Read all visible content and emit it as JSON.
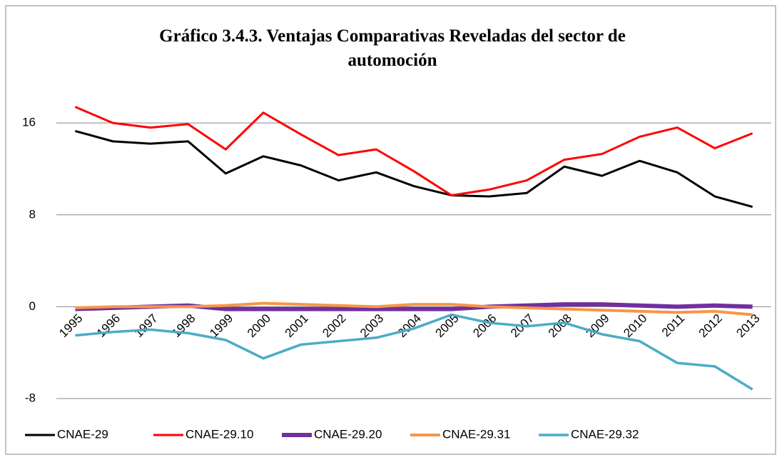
{
  "chart_data": {
    "type": "line",
    "title": "Gráfico 3.4.3. Ventajas Comparativas Reveladas del sector de automoción",
    "categories": [
      "1995",
      "1996",
      "1997",
      "1998",
      "1999",
      "2000",
      "2001",
      "2002",
      "2003",
      "2004",
      "2005",
      "2006",
      "2007",
      "2008",
      "2009",
      "2010",
      "2011",
      "2012",
      "2013"
    ],
    "series": [
      {
        "name": "CNAE-29",
        "color": "#000000",
        "values": [
          15.3,
          14.4,
          14.2,
          14.4,
          11.6,
          13.1,
          12.3,
          11.0,
          11.7,
          10.5,
          9.7,
          9.6,
          9.9,
          12.2,
          11.4,
          12.7,
          11.7,
          9.6,
          8.7
        ]
      },
      {
        "name": "CNAE-29.10",
        "color": "#ff0000",
        "values": [
          17.4,
          16.0,
          15.6,
          15.9,
          13.7,
          16.9,
          15.0,
          13.2,
          13.7,
          11.8,
          9.7,
          10.2,
          11.0,
          12.8,
          13.3,
          14.8,
          15.6,
          13.8,
          15.1
        ]
      },
      {
        "name": "CNAE-29.20",
        "color": "#7030a0",
        "values": [
          -0.2,
          -0.1,
          0,
          0.1,
          -0.2,
          -0.2,
          -0.2,
          -0.2,
          -0.2,
          -0.2,
          -0.2,
          0,
          0.1,
          0.2,
          0.2,
          0.1,
          0,
          0.1,
          0
        ]
      },
      {
        "name": "CNAE-29.31",
        "color": "#f79646",
        "values": [
          -0.1,
          0,
          0,
          0,
          0.1,
          0.3,
          0.2,
          0.1,
          0,
          0.2,
          0.2,
          0,
          -0.1,
          -0.2,
          -0.3,
          -0.4,
          -0.5,
          -0.4,
          -0.7
        ]
      },
      {
        "name": "CNAE-29.32",
        "color": "#4bacc6",
        "values": [
          -2.5,
          -2.2,
          -2.0,
          -2.3,
          -2.9,
          -4.5,
          -3.3,
          -3.0,
          -2.7,
          -1.9,
          -0.7,
          -1.4,
          -1.7,
          -1.4,
          -2.4,
          -3.0,
          -4.9,
          -5.2,
          -7.2
        ]
      }
    ],
    "ylim": [
      -8,
      18
    ],
    "yticks": [
      -8,
      0,
      8,
      16
    ],
    "grid": true,
    "legend": "bottom"
  }
}
